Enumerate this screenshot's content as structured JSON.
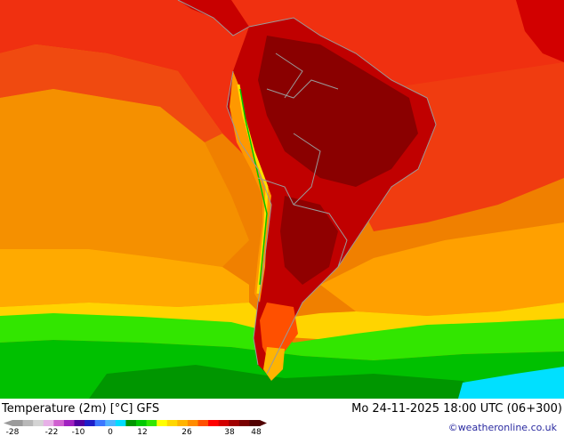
{
  "map": {
    "title": "Temperature (2m) [°C] GFS",
    "datetime": "Mo 24-11-2025 18:00 UTC (06+300)",
    "brand": "©weatheronline.co.uk",
    "legend": {
      "ticks": [
        "-28",
        "-22",
        "-10",
        "0",
        "12",
        "26",
        "38",
        "48"
      ],
      "swatches": [
        "#9b9b9b",
        "#b8b8b8",
        "#d4d4d4",
        "#e7b0e7",
        "#d060d0",
        "#a020c0",
        "#5000a0",
        "#1e1ec8",
        "#3c78ff",
        "#50b4ff",
        "#00dcff",
        "#009600",
        "#00c800",
        "#32e600",
        "#ffff00",
        "#ffd700",
        "#ffb400",
        "#ff8c00",
        "#ff5000",
        "#ff0000",
        "#d20000",
        "#a00000",
        "#780000",
        "#500000"
      ]
    },
    "colors": {
      "ocean_warm": "#f08000",
      "ocean_hot": "#f03010",
      "ocean_mild": "#ffb400",
      "ocean_yellow": "#ffe000",
      "cold_green": "#00c800",
      "cold_cyan": "#00e0ff",
      "land_hot": "#c00000",
      "land_hotter": "#8a0000",
      "andes": "#ff9800",
      "borders": "#9a9a9a"
    }
  }
}
